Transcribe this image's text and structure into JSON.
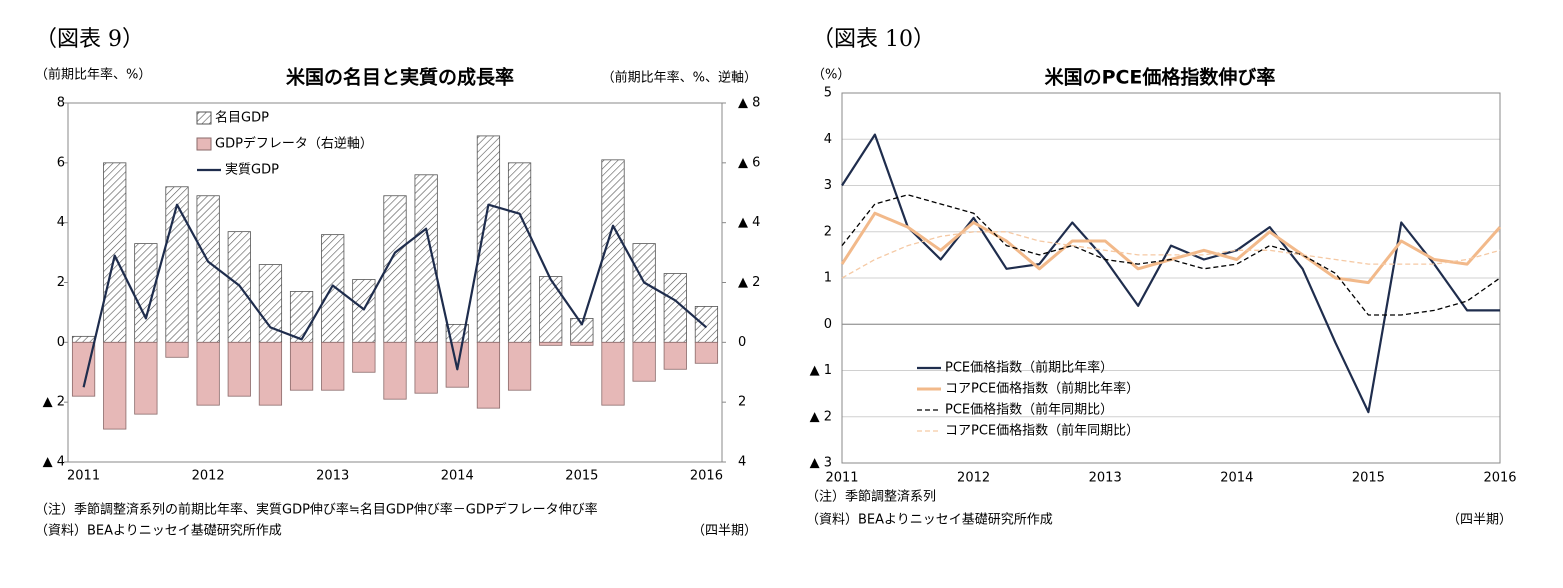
{
  "chart_data": [
    {
      "type": "bar",
      "figure_label": "（図表 9）",
      "title": "米国の名目と実質の成長率",
      "y_label": "（前期比年率、%）",
      "y2_label": "（前期比年率、%、逆軸）",
      "x_label": "（四半期）",
      "notes": [
        "（注）季節調整済系列の前期比年率、実質GDP伸び率≒名目GDP伸び率－GDPデフレータ伸び率",
        "（資料）BEAよりニッセイ基礎研究所作成"
      ],
      "categories": [
        "2011",
        null,
        null,
        null,
        "2012",
        null,
        null,
        null,
        "2013",
        null,
        null,
        null,
        "2014",
        null,
        null,
        null,
        "2015",
        null,
        null,
        null,
        "2016"
      ],
      "series": [
        {
          "name": "名目GDP",
          "type": "bar",
          "hatch": true,
          "color": "#555555",
          "values": [
            0.2,
            6.0,
            3.3,
            5.2,
            4.9,
            3.7,
            2.6,
            1.7,
            3.6,
            2.1,
            4.9,
            5.6,
            0.6,
            6.9,
            6.0,
            2.2,
            0.8,
            6.1,
            3.3,
            2.3,
            1.2
          ]
        },
        {
          "name": "GDPデフレータ（右逆軸）",
          "type": "bar",
          "axis": "y2",
          "color": "#e6b8b7",
          "values": [
            1.8,
            2.9,
            2.4,
            0.5,
            2.1,
            1.8,
            2.1,
            1.6,
            1.6,
            1.0,
            1.9,
            1.7,
            1.5,
            2.2,
            1.6,
            0.1,
            0.1,
            2.1,
            1.3,
            0.9,
            0.7
          ]
        },
        {
          "name": "実質GDP",
          "type": "line",
          "color": "#1f2d4d",
          "values": [
            -1.5,
            2.9,
            0.8,
            4.6,
            2.7,
            1.9,
            0.5,
            0.1,
            1.9,
            1.1,
            3.0,
            3.8,
            -0.9,
            4.6,
            4.3,
            2.1,
            0.6,
            3.9,
            2.0,
            1.4,
            0.5
          ]
        }
      ],
      "ylim": [
        -4,
        8
      ],
      "yticks": [
        {
          "value": -4,
          "label": "▲ 4"
        },
        {
          "value": -2,
          "label": "▲ 2"
        },
        0,
        2,
        4,
        6,
        8
      ],
      "y2lim": [
        4,
        -8
      ],
      "y2ticks": [
        4,
        2,
        0,
        {
          "value": -2,
          "label": "▲ 2"
        },
        {
          "value": -4,
          "label": "▲ 4"
        },
        {
          "value": -6,
          "label": "▲ 6"
        },
        {
          "value": -8,
          "label": "▲ 8"
        }
      ],
      "grid": false
    },
    {
      "type": "line",
      "figure_label": "（図表 10）",
      "title": "米国のPCE価格指数伸び率",
      "y_label": "（%）",
      "x_label": "（四半期）",
      "notes": [
        "（注）季節調整済系列",
        "（資料）BEAよりニッセイ基礎研究所作成"
      ],
      "categories": [
        "2011",
        null,
        null,
        null,
        "2012",
        null,
        null,
        null,
        "2013",
        null,
        null,
        null,
        "2014",
        null,
        null,
        null,
        "2015",
        null,
        null,
        null,
        "2016"
      ],
      "series": [
        {
          "name": "PCE価格指数（前期比年率）",
          "type": "line",
          "color": "#1f2d4d",
          "values": [
            3.0,
            4.1,
            2.1,
            1.4,
            2.3,
            1.2,
            1.3,
            2.2,
            1.4,
            0.4,
            1.7,
            1.4,
            1.6,
            2.1,
            1.2,
            -0.4,
            -1.9,
            2.2,
            1.3,
            0.3,
            0.3
          ]
        },
        {
          "name": "コアPCE価格指数（前期比年率）",
          "type": "line",
          "color": "#f2b98a",
          "values": [
            1.3,
            2.4,
            2.1,
            1.6,
            2.2,
            1.8,
            1.2,
            1.8,
            1.8,
            1.2,
            1.4,
            1.6,
            1.4,
            2.0,
            1.5,
            1.0,
            0.9,
            1.8,
            1.4,
            1.3,
            2.1
          ]
        },
        {
          "name": "PCE価格指数（前年同期比）",
          "type": "line",
          "dashed": true,
          "color": "#000000",
          "values": [
            1.7,
            2.6,
            2.8,
            2.6,
            2.4,
            1.7,
            1.5,
            1.7,
            1.4,
            1.3,
            1.4,
            1.2,
            1.3,
            1.7,
            1.5,
            1.1,
            0.2,
            0.2,
            0.3,
            0.5,
            1.0
          ]
        },
        {
          "name": "コアPCE価格指数（前年同期比）",
          "type": "line",
          "dashed": true,
          "color": "#f5c9a4",
          "values": [
            1.0,
            1.4,
            1.7,
            1.9,
            2.0,
            2.0,
            1.8,
            1.7,
            1.6,
            1.5,
            1.5,
            1.5,
            1.6,
            1.6,
            1.5,
            1.4,
            1.3,
            1.3,
            1.3,
            1.4,
            1.6
          ]
        }
      ],
      "ylim": [
        -3,
        5
      ],
      "yticks": [
        {
          "value": -3,
          "label": "▲ 3"
        },
        {
          "value": -2,
          "label": "▲ 2"
        },
        {
          "value": -1,
          "label": "▲ 1"
        },
        0,
        1,
        2,
        3,
        4,
        5
      ],
      "grid": true
    }
  ]
}
